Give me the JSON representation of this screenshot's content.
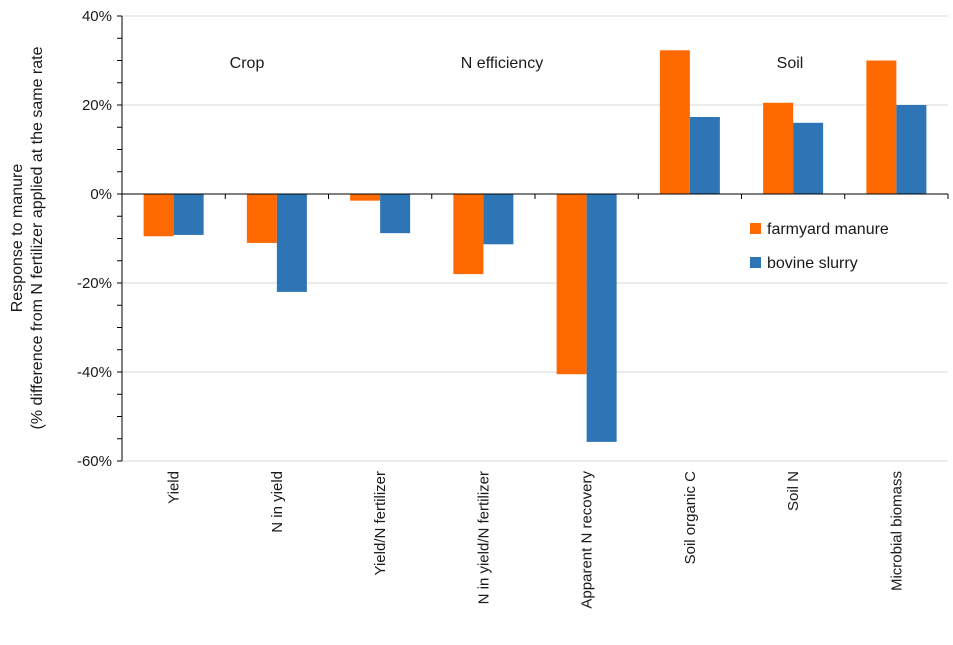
{
  "chart_data": {
    "type": "bar",
    "ylabel_lines": [
      "Response to manure",
      "(% difference from N fertilizer applied at the same rate"
    ],
    "xlabel": "",
    "ylim": [
      -60,
      40
    ],
    "yticks": [
      -60,
      -40,
      -20,
      0,
      20,
      40
    ],
    "ytick_labels": [
      "-60%",
      "-40%",
      "-20%",
      "0%",
      "20%",
      "40%"
    ],
    "grid": true,
    "categories": [
      "Yield",
      "N in yield",
      "Yield/N fertilizer",
      "N in yield/N fertilizer",
      "Apparent N recovery",
      "Soil organic C",
      "Soil N",
      "Microbial biomass"
    ],
    "series": [
      {
        "name": "farmyard manure",
        "color": "#ff6a00",
        "values": [
          -9.5,
          -11,
          -1.5,
          -18,
          -40.5,
          32.3,
          20.5,
          30
        ]
      },
      {
        "name": "bovine slurry",
        "color": "#2e75b6",
        "values": [
          -9.2,
          -22,
          -8.8,
          -11.3,
          -55.7,
          17.3,
          16,
          20
        ]
      }
    ],
    "group_labels": [
      {
        "text": "Crop",
        "category_index": 1
      },
      {
        "text": "N efficiency",
        "category_index": 3
      },
      {
        "text": "Soil",
        "category_index": 6
      }
    ],
    "legend_position": "right"
  }
}
